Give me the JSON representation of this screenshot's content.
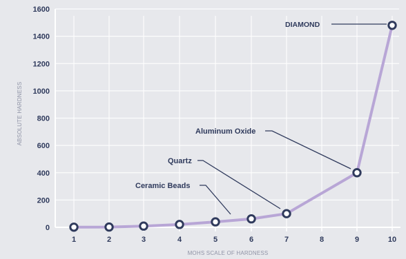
{
  "chart_data": {
    "type": "line",
    "xlabel": "MOHS SCALE OF HARDNESS",
    "ylabel": "ABSOLUTE HARDNESS",
    "ylim": [
      0,
      1600
    ],
    "grid": true,
    "x_ticks": [
      1,
      2,
      3,
      4,
      5,
      6,
      7,
      8,
      9,
      10
    ],
    "y_ticks": [
      0,
      200,
      400,
      600,
      800,
      1000,
      1200,
      1400,
      1600
    ],
    "series": [
      {
        "points": [
          {
            "x": 1,
            "y": 1
          },
          {
            "x": 2,
            "y": 2
          },
          {
            "x": 3,
            "y": 9
          },
          {
            "x": 4,
            "y": 21
          },
          {
            "x": 5,
            "y": 40
          },
          {
            "x": 6,
            "y": 62
          },
          {
            "x": 7,
            "y": 100
          },
          {
            "x": 9,
            "y": 400
          },
          {
            "x": 10,
            "y": 1480
          }
        ]
      }
    ],
    "annotations": [
      {
        "text": "DIAMOND",
        "x": 10,
        "y": 1480
      },
      {
        "text": "Aluminum Oxide",
        "x": 9,
        "y": 400
      },
      {
        "text": "Quartz",
        "x": 7,
        "y": 100
      },
      {
        "text": "Ceramic Beads",
        "x": 6,
        "y": 62
      }
    ],
    "colors": {
      "line": "#b8a6d6",
      "marker_stroke": "#2f3a5c",
      "text": "#2f3a5c",
      "grid": "#ffffff"
    }
  }
}
